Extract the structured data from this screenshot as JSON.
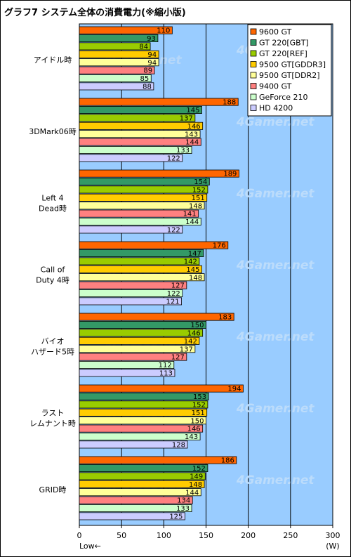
{
  "chart_data": {
    "type": "bar",
    "orientation": "horizontal",
    "title": "グラフ7  システム全体の消費電力(※縮小版)",
    "categories": [
      "アイドル時",
      "3DMark06時",
      "Left 4|Dead時",
      "Call of|Duty 4時",
      "バイオ|ハザード5時",
      "ラスト|レムナント時",
      "GRID時"
    ],
    "series": [
      {
        "name": "9600 GT",
        "color": "#FF6600",
        "values": [
          110,
          188,
          189,
          176,
          183,
          194,
          186
        ]
      },
      {
        "name": "GT 220[GBT]",
        "color": "#339966",
        "values": [
          93,
          145,
          154,
          147,
          150,
          153,
          152
        ]
      },
      {
        "name": "GT 220[REF]",
        "color": "#99CC00",
        "values": [
          84,
          137,
          152,
          142,
          146,
          152,
          149
        ]
      },
      {
        "name": "9500 GT[GDDR3]",
        "color": "#FFCC00",
        "values": [
          94,
          146,
          151,
          145,
          142,
          151,
          148
        ]
      },
      {
        "name": "9500 GT[DDR2]",
        "color": "#FFFF99",
        "values": [
          94,
          143,
          148,
          148,
          137,
          150,
          144
        ]
      },
      {
        "name": "9400 GT",
        "color": "#FF8080",
        "values": [
          89,
          144,
          141,
          127,
          127,
          146,
          134
        ]
      },
      {
        "name": "GeForce 210",
        "color": "#CCFFCC",
        "values": [
          85,
          133,
          144,
          122,
          112,
          143,
          133
        ]
      },
      {
        "name": "HD 4200",
        "color": "#CCCCFF",
        "values": [
          88,
          122,
          122,
          121,
          113,
          128,
          125
        ]
      }
    ],
    "xlim": [
      0,
      300
    ],
    "xticks": [
      0,
      50,
      100,
      150,
      200,
      250,
      300
    ],
    "xlabel_left": "Low←",
    "xlabel_unit": "(W)",
    "watermark": "4Gamer.net",
    "legend_position": "top-right",
    "grid": true,
    "plot_background": "#99CCFF"
  }
}
